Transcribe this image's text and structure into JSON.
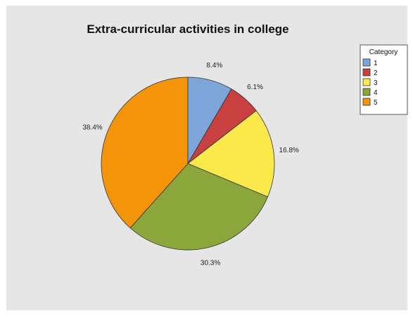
{
  "chart_data": {
    "type": "pie",
    "title": "Extra-curricular activities in college",
    "legend_title": "Category",
    "legend_position": "top-right",
    "categories": [
      "1",
      "2",
      "3",
      "4",
      "5"
    ],
    "values": [
      8.4,
      6.1,
      16.8,
      30.3,
      38.4
    ],
    "labels": [
      "8.4%",
      "6.1%",
      "16.8%",
      "30.3%",
      "38.4%"
    ],
    "colors": [
      "#7da5d9",
      "#c94040",
      "#fbe94c",
      "#8ba63b",
      "#f39409"
    ],
    "start_angle_deg": 0,
    "direction": "clockwise"
  }
}
